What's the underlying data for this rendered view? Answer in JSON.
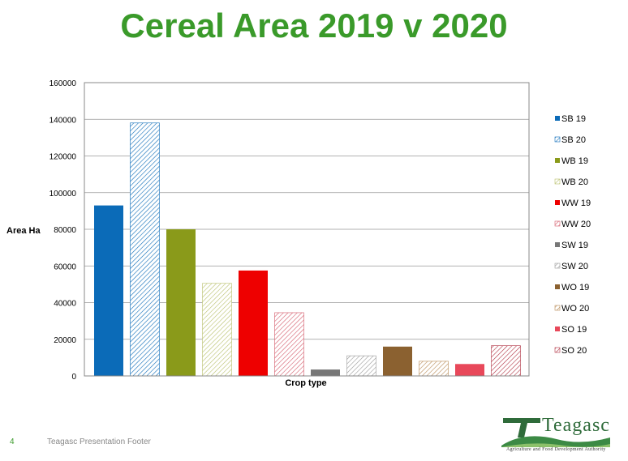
{
  "slide": {
    "title": "Cereal Area 2019 v 2020",
    "page_number": "4",
    "footer": "Teagasc Presentation Footer"
  },
  "logo": {
    "wordmark": "Teagasc",
    "tagline": "Agriculture and Food Development Authority"
  },
  "chart_data": {
    "type": "bar",
    "xlabel": "Crop type",
    "ylabel": "Area Ha",
    "ylim": [
      0,
      160000
    ],
    "yticks": [
      "0",
      "20000",
      "40000",
      "60000",
      "80000",
      "100000",
      "120000",
      "140000",
      "160000"
    ],
    "grid": true,
    "legend_position": "right",
    "series": [
      {
        "name": "SB 19",
        "value": 93000,
        "color": "#0b6bb8",
        "pattern": "solid"
      },
      {
        "name": "SB 20",
        "value": 138000,
        "color": "#0b6bb8",
        "pattern": "hatch"
      },
      {
        "name": "WB 19",
        "value": 80000,
        "color": "#8a9a1a",
        "pattern": "solid"
      },
      {
        "name": "WB 20",
        "value": 50500,
        "color": "#b8bf6a",
        "pattern": "hatch"
      },
      {
        "name": "WW 19",
        "value": 57500,
        "color": "#ee0000",
        "pattern": "solid"
      },
      {
        "name": "WW 20",
        "value": 34500,
        "color": "#d45a6a",
        "pattern": "hatch"
      },
      {
        "name": "SW 19",
        "value": 3500,
        "color": "#777777",
        "pattern": "solid"
      },
      {
        "name": "SW 20",
        "value": 11000,
        "color": "#999999",
        "pattern": "hatch"
      },
      {
        "name": "WO 19",
        "value": 16000,
        "color": "#8b6130",
        "pattern": "solid"
      },
      {
        "name": "WO 20",
        "value": 8000,
        "color": "#b88a55",
        "pattern": "hatch"
      },
      {
        "name": "SO 19",
        "value": 6500,
        "color": "#e8485a",
        "pattern": "solid"
      },
      {
        "name": "SO 20",
        "value": 16500,
        "color": "#b03040",
        "pattern": "hatch"
      }
    ]
  }
}
